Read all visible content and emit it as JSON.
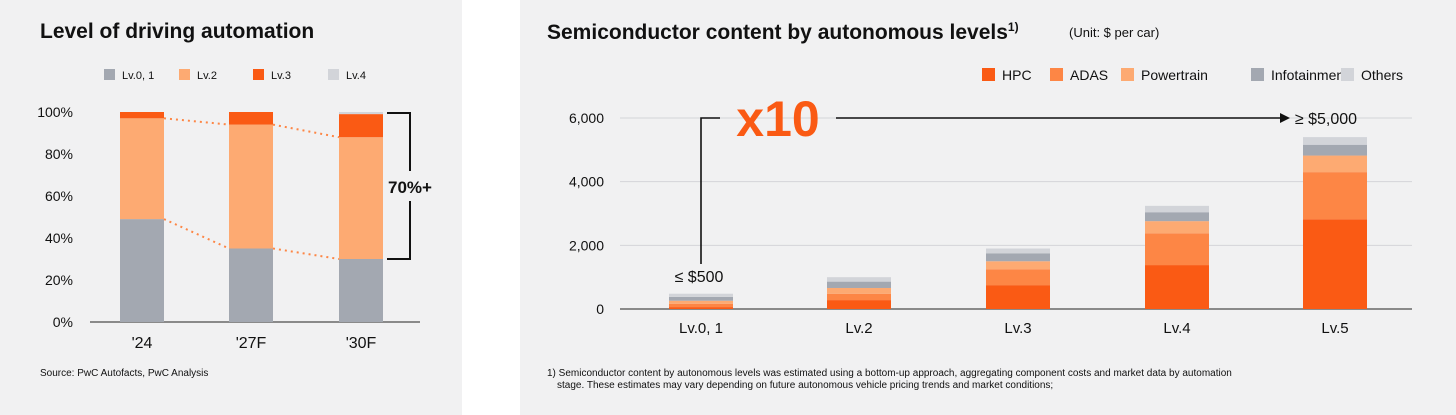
{
  "left": {
    "title": "Level of driving automation",
    "source": "Source: PwC Autofacts, PwC Analysis",
    "bracket_label": "70%+"
  },
  "right": {
    "title": "Semiconductor content by autonomous levels",
    "title_sup": "1)",
    "unit": "(Unit: $ per car)",
    "multiplier_label": "x10",
    "low_label": "≤ $500",
    "high_label": "≥ $5,000",
    "footnote_line1": "1) Semiconductor content by autonomous levels was estimated using a bottom-up approach, aggregating component costs and market data by automation",
    "footnote_line2": "stage. These estimates may vary depending on future autonomous vehicle pricing trends and market conditions;"
  },
  "chart_data": [
    {
      "type": "bar",
      "stacked": true,
      "title": "Level of driving automation",
      "categories": [
        "'24",
        "'27F",
        "'30F"
      ],
      "series": [
        {
          "name": "Lv.0, 1",
          "color": "#a3a8b1",
          "values": [
            49,
            35,
            30
          ]
        },
        {
          "name": "Lv.2",
          "color": "#fdaa72",
          "values": [
            48,
            59,
            58
          ]
        },
        {
          "name": "Lv.3",
          "color": "#fa5a14",
          "values": [
            3,
            6,
            11
          ]
        },
        {
          "name": "Lv.4",
          "color": "#d2d4d9",
          "values": [
            0,
            0,
            1
          ]
        }
      ],
      "yticks": [
        "0%",
        "20%",
        "40%",
        "60%",
        "80%",
        "100%"
      ],
      "ylim": [
        0,
        100
      ],
      "legend": "top"
    },
    {
      "type": "bar",
      "stacked": true,
      "title": "Semiconductor content by autonomous levels",
      "categories": [
        "Lv.0, 1",
        "Lv.2",
        "Lv.3",
        "Lv.4",
        "Lv.5"
      ],
      "series": [
        {
          "name": "HPC",
          "color": "#fa5a14",
          "values": [
            60,
            280,
            750,
            1380,
            2820
          ]
        },
        {
          "name": "ADAS",
          "color": "#fd8645",
          "values": [
            100,
            200,
            500,
            1000,
            1480
          ]
        },
        {
          "name": "Powertrain",
          "color": "#fdaa72",
          "values": [
            100,
            180,
            250,
            380,
            520
          ]
        },
        {
          "name": "Infotainment",
          "color": "#a3a8b1",
          "values": [
            120,
            200,
            250,
            280,
            340
          ]
        },
        {
          "name": "Others",
          "color": "#d2d4d9",
          "values": [
            100,
            140,
            150,
            200,
            240
          ]
        }
      ],
      "yticks": [
        "0",
        "2,000",
        "4,000",
        "6,000"
      ],
      "ylim": [
        0,
        6000
      ],
      "legend": "top-right"
    }
  ]
}
